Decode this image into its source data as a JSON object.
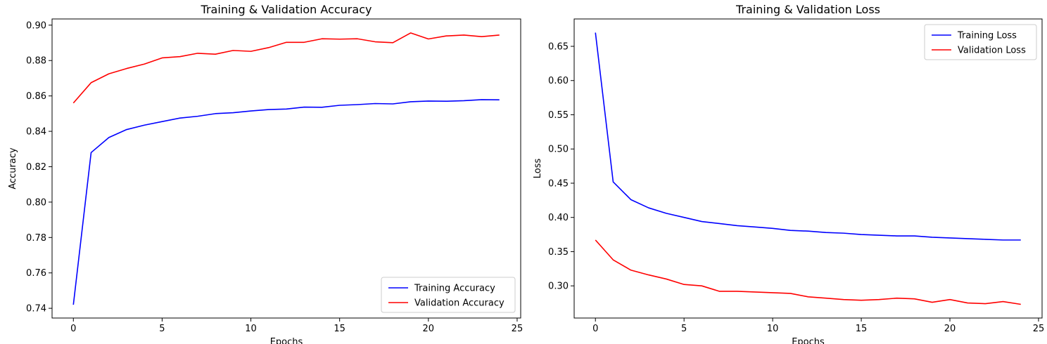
{
  "chart_data": [
    {
      "type": "line",
      "title": "Training & Validation Accuracy",
      "xlabel": "Epochs",
      "ylabel": "Accuracy",
      "xlim": [
        -1.2,
        25.2
      ],
      "ylim": [
        0.7345,
        0.9035
      ],
      "xticks": [
        0,
        5,
        10,
        15,
        20,
        25
      ],
      "yticks": [
        0.74,
        0.76,
        0.78,
        0.8,
        0.82,
        0.84,
        0.86,
        0.88,
        0.9
      ],
      "xtick_labels": [
        "0",
        "5",
        "10",
        "15",
        "20",
        "25"
      ],
      "ytick_labels": [
        "0.74",
        "0.76",
        "0.78",
        "0.80",
        "0.82",
        "0.84",
        "0.86",
        "0.88",
        "0.90"
      ],
      "legend": "bottom-right",
      "grid": false,
      "x": [
        0,
        1,
        2,
        3,
        4,
        5,
        6,
        7,
        8,
        9,
        10,
        11,
        12,
        13,
        14,
        15,
        16,
        17,
        18,
        19,
        20,
        21,
        22,
        23,
        24
      ],
      "series": [
        {
          "name": "Training Accuracy",
          "color": "#0000ff",
          "values": [
            0.742,
            0.828,
            0.8365,
            0.841,
            0.8435,
            0.8455,
            0.8475,
            0.8485,
            0.85,
            0.8505,
            0.8515,
            0.8523,
            0.8526,
            0.8537,
            0.8536,
            0.8547,
            0.8551,
            0.8557,
            0.8555,
            0.8567,
            0.8571,
            0.857,
            0.8573,
            0.8579,
            0.8578
          ]
        },
        {
          "name": "Validation Accuracy",
          "color": "#ff0000",
          "values": [
            0.856,
            0.8675,
            0.8725,
            0.8755,
            0.878,
            0.8815,
            0.8822,
            0.8841,
            0.8836,
            0.8857,
            0.8852,
            0.8873,
            0.8903,
            0.8903,
            0.8923,
            0.8921,
            0.8923,
            0.8906,
            0.8901,
            0.8956,
            0.8922,
            0.8939,
            0.8944,
            0.8935,
            0.8944
          ]
        }
      ]
    },
    {
      "type": "line",
      "title": "Training & Validation Loss",
      "xlabel": "Epochs",
      "ylabel": "Loss",
      "xlim": [
        -1.2,
        25.2
      ],
      "ylim": [
        0.253,
        0.69
      ],
      "xticks": [
        0,
        5,
        10,
        15,
        20,
        25
      ],
      "yticks": [
        0.3,
        0.35,
        0.4,
        0.45,
        0.5,
        0.55,
        0.6,
        0.65
      ],
      "xtick_labels": [
        "0",
        "5",
        "10",
        "15",
        "20",
        "25"
      ],
      "ytick_labels": [
        "0.30",
        "0.35",
        "0.40",
        "0.45",
        "0.50",
        "0.55",
        "0.60",
        "0.65"
      ],
      "legend": "top-right",
      "grid": false,
      "x": [
        0,
        1,
        2,
        3,
        4,
        5,
        6,
        7,
        8,
        9,
        10,
        11,
        12,
        13,
        14,
        15,
        16,
        17,
        18,
        19,
        20,
        21,
        22,
        23,
        24
      ],
      "series": [
        {
          "name": "Training Loss",
          "color": "#0000ff",
          "values": [
            0.67,
            0.452,
            0.426,
            0.414,
            0.406,
            0.4,
            0.394,
            0.391,
            0.388,
            0.386,
            0.384,
            0.381,
            0.38,
            0.378,
            0.377,
            0.375,
            0.374,
            0.373,
            0.373,
            0.371,
            0.37,
            0.369,
            0.368,
            0.367,
            0.367
          ]
        },
        {
          "name": "Validation Loss",
          "color": "#ff0000",
          "values": [
            0.367,
            0.338,
            0.323,
            0.316,
            0.31,
            0.302,
            0.3,
            0.292,
            0.292,
            0.291,
            0.29,
            0.289,
            0.284,
            0.282,
            0.28,
            0.279,
            0.28,
            0.282,
            0.281,
            0.276,
            0.28,
            0.275,
            0.274,
            0.277,
            0.273
          ]
        }
      ]
    }
  ]
}
